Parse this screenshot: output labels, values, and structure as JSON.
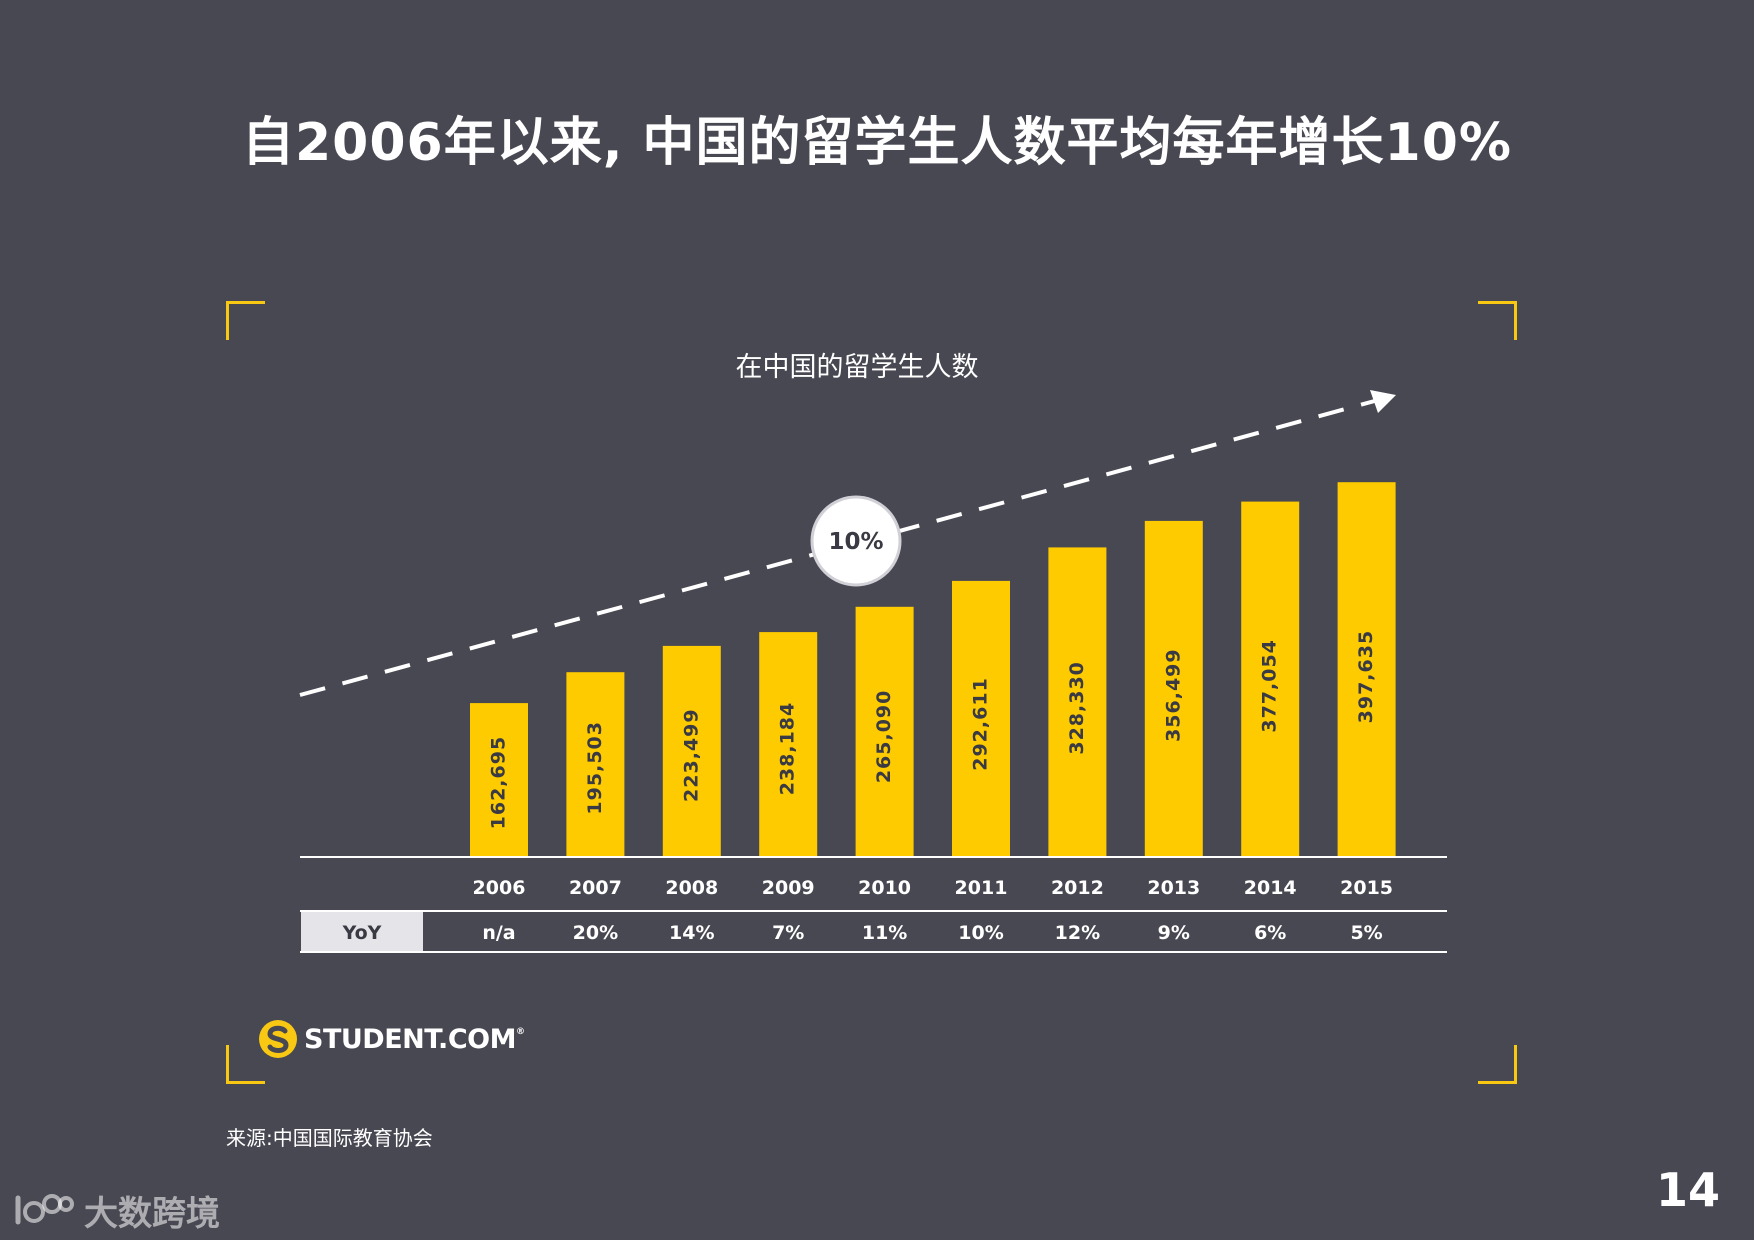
{
  "headline": "自2006年以来, 中国的留学生人数平均每年增长10%",
  "colors": {
    "background": "#484853",
    "bar": "#fecb00",
    "accent": "#f8c812",
    "text": "#ffffff"
  },
  "chart_data": {
    "type": "bar",
    "title": "在中国的留学生人数",
    "categories": [
      "2006",
      "2007",
      "2008",
      "2009",
      "2010",
      "2011",
      "2012",
      "2013",
      "2014",
      "2015"
    ],
    "values": [
      162695,
      195503,
      223499,
      238184,
      265090,
      292611,
      328330,
      356499,
      377054,
      397635
    ],
    "value_labels": [
      "162,695",
      "195,503",
      "223,499",
      "238,184",
      "265,090",
      "292,611",
      "328,330",
      "356,499",
      "377,054",
      "397,635"
    ],
    "ylim": [
      0,
      400000
    ],
    "xlabel": "",
    "ylabel": "",
    "grid": false,
    "trend_annotation": "10%",
    "yoy_header": "YoY",
    "yoy": [
      "n/a",
      "20%",
      "14%",
      "7%",
      "11%",
      "10%",
      "12%",
      "9%",
      "6%",
      "5%"
    ]
  },
  "logo": {
    "text": "STUDENT.COM",
    "mark": "®"
  },
  "source": "来源:中国国际教育协会",
  "page_number": "14",
  "watermark": {
    "text": "大数跨境"
  }
}
